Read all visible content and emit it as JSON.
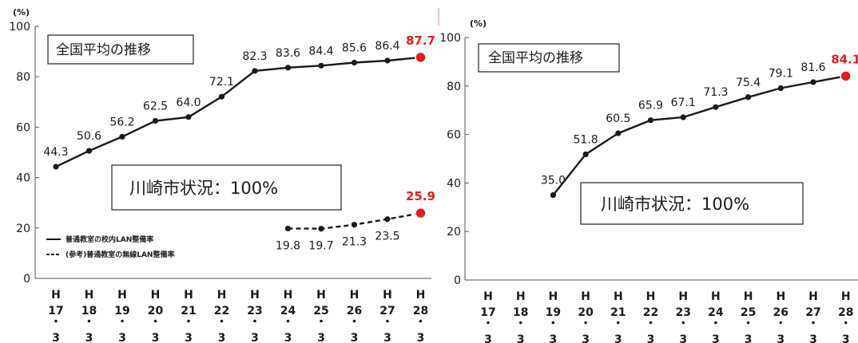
{
  "chart_data": [
    {
      "type": "line",
      "unit_label": "(%)",
      "ylim": [
        0,
        100
      ],
      "yticks": [
        0,
        20,
        40,
        60,
        80,
        100
      ],
      "categories": [
        [
          "H",
          "17",
          "・",
          "3"
        ],
        [
          "H",
          "18",
          "・",
          "3"
        ],
        [
          "H",
          "19",
          "・",
          "3"
        ],
        [
          "H",
          "20",
          "・",
          "3"
        ],
        [
          "H",
          "21",
          "・",
          "3"
        ],
        [
          "H",
          "22",
          "・",
          "3"
        ],
        [
          "H",
          "23",
          "・",
          "3"
        ],
        [
          "H",
          "24",
          "・",
          "3"
        ],
        [
          "H",
          "25",
          "・",
          "3"
        ],
        [
          "H",
          "26",
          "・",
          "3"
        ],
        [
          "H",
          "27",
          "・",
          "3"
        ],
        [
          "H",
          "28",
          "・",
          "3"
        ]
      ],
      "box_title": "全国平均の推移",
      "box_note": "川崎市状況：100%",
      "series": [
        {
          "name": "普通教室の校内LAN整備率",
          "style": "solid",
          "values": [
            44.3,
            50.6,
            56.2,
            62.5,
            64.0,
            72.1,
            82.3,
            83.6,
            84.4,
            85.6,
            86.4,
            87.7
          ],
          "labels": [
            "44.3",
            "50.6",
            "56.2",
            "62.5",
            "64.0",
            "72.1",
            "82.3",
            "83.6",
            "84.4",
            "85.6",
            "86.4",
            "87.7"
          ]
        },
        {
          "name": "(参考)普通教室の無線LAN整備率",
          "style": "dashed",
          "values": [
            null,
            null,
            null,
            null,
            null,
            null,
            null,
            19.8,
            19.7,
            21.3,
            23.5,
            25.9
          ],
          "labels": [
            "",
            "",
            "",
            "",
            "",
            "",
            "",
            "19.8",
            "19.7",
            "21.3",
            "23.5",
            "25.9"
          ]
        }
      ],
      "highlight_color": "#e02020",
      "line_color": "#1a1a1a"
    },
    {
      "type": "line",
      "unit_label": "(%)",
      "ylim": [
        0,
        100
      ],
      "yticks": [
        0,
        20,
        40,
        60,
        80,
        100
      ],
      "categories": [
        [
          "H",
          "17",
          "・",
          "3"
        ],
        [
          "H",
          "18",
          "・",
          "3"
        ],
        [
          "H",
          "19",
          "・",
          "3"
        ],
        [
          "H",
          "20",
          "・",
          "3"
        ],
        [
          "H",
          "21",
          "・",
          "3"
        ],
        [
          "H",
          "22",
          "・",
          "3"
        ],
        [
          "H",
          "23",
          "・",
          "3"
        ],
        [
          "H",
          "24",
          "・",
          "3"
        ],
        [
          "H",
          "25",
          "・",
          "3"
        ],
        [
          "H",
          "26",
          "・",
          "3"
        ],
        [
          "H",
          "27",
          "・",
          "3"
        ],
        [
          "H",
          "28",
          "・",
          "3"
        ]
      ],
      "box_title": "全国平均の推移",
      "box_note": "川崎市状況：100%",
      "series": [
        {
          "style": "solid",
          "values": [
            null,
            null,
            35.0,
            51.8,
            60.5,
            65.9,
            67.1,
            71.3,
            75.4,
            79.1,
            81.6,
            84.1
          ],
          "labels": [
            "",
            "",
            "35.0",
            "51.8",
            "60.5",
            "65.9",
            "67.1",
            "71.3",
            "75.4",
            "79.1",
            "81.6",
            "84.1"
          ]
        }
      ],
      "highlight_color": "#e02020",
      "line_color": "#1a1a1a"
    }
  ]
}
